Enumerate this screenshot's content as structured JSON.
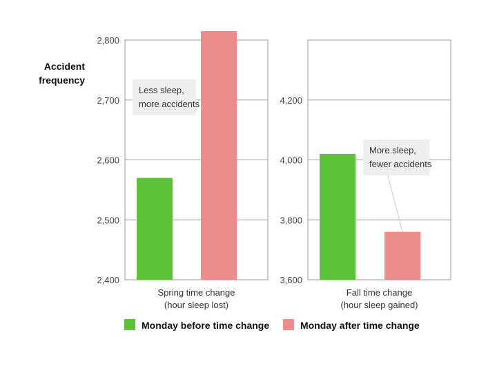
{
  "y_axis_label": [
    "Accident",
    "frequency"
  ],
  "legend": [
    {
      "label": "Monday before time change",
      "color": "#5cc339"
    },
    {
      "label": "Monday after time change",
      "color": "#ec8d8d"
    }
  ],
  "chart_data": [
    {
      "type": "bar",
      "categories": [
        "Monday before time change",
        "Monday after time change"
      ],
      "values": [
        2570,
        2815
      ],
      "ylim": [
        2400,
        2800
      ],
      "yticks": [
        2400,
        2500,
        2600,
        2700,
        2800
      ],
      "ytick_labels": [
        "2,400",
        "2,500",
        "2,600",
        "2,700",
        "2,800"
      ],
      "xlabel": [
        "Spring time change",
        "(hour sleep lost)"
      ],
      "annotation": [
        "Less sleep,",
        "more accidents"
      ],
      "grid": true
    },
    {
      "type": "bar",
      "categories": [
        "Monday before time change",
        "Monday after time change"
      ],
      "values": [
        4020,
        3760
      ],
      "ylim": [
        3600,
        4400
      ],
      "yticks": [
        3600,
        3800,
        4000,
        4200
      ],
      "ytick_labels": [
        "3,600",
        "3,800",
        "4,000",
        "4,200"
      ],
      "xlabel": [
        "Fall time change",
        "(hour sleep gained)"
      ],
      "annotation": [
        "More sleep,",
        "fewer accidents"
      ],
      "grid": true
    }
  ]
}
